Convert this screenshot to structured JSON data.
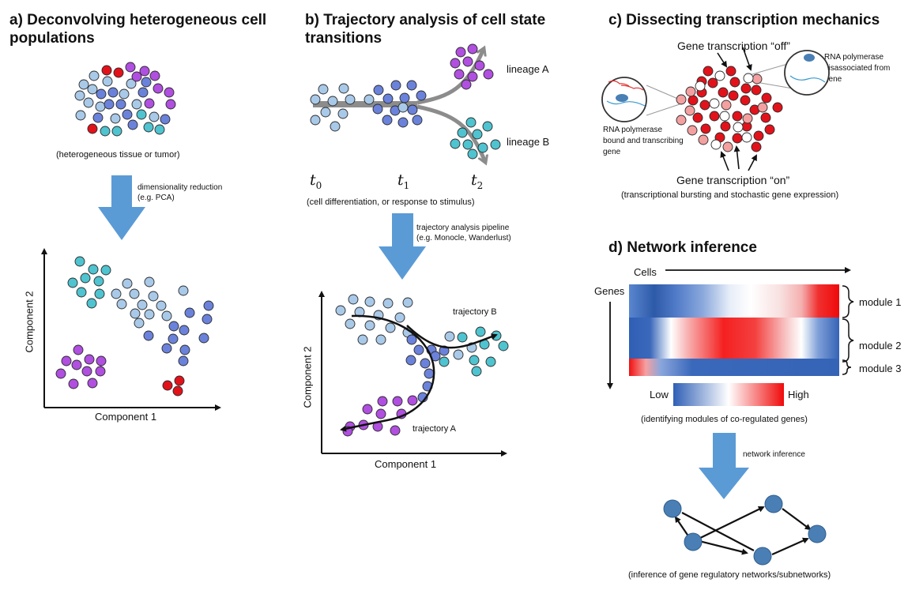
{
  "colors": {
    "light_blue": "#a9c9e8",
    "mid_blue": "#6b82db",
    "teal": "#4fc3cf",
    "purple": "#b04fe0",
    "red": "#e2121b",
    "light_red": "#f4a0a0",
    "arrow_blue": "#5b9bd5",
    "node_blue": "#4a7fb5",
    "heat_low": "#2f5fb5",
    "heat_high": "#f00a0a"
  },
  "panel_a": {
    "title_line1": "a) Deconvolving heterogeneous cell",
    "title_line2": "populations",
    "caption": "(heterogeneous tissue or tumor)",
    "arrow_label_line1": "dimensionality reduction",
    "arrow_label_line2": "(e.g. PCA)",
    "xlabel": "Component 1",
    "ylabel": "Component 2"
  },
  "panel_b": {
    "title_line1": "b) Trajectory analysis of cell state",
    "title_line2": "transitions",
    "lineage_a": "lineage A",
    "lineage_b": "lineage B",
    "t0": "t",
    "t0_sub": "0",
    "t1": "t",
    "t1_sub": "1",
    "t2": "t",
    "t2_sub": "2",
    "caption": "(cell differentiation, or response to stimulus)",
    "arrow_label_line1": "trajectory analysis pipeline",
    "arrow_label_line2": "(e.g. Monocle, Wanderlust)",
    "trajectory_a": "trajectory A",
    "trajectory_b": "trajectory B",
    "xlabel": "Component 1",
    "ylabel": "Component 2"
  },
  "panel_c": {
    "title": "c) Dissecting transcription mechanics",
    "off_label": "Gene transcription “off”",
    "on_label": "Gene transcription “on”",
    "bound_line1": "RNA polymerase",
    "bound_line2": "bound and transcribing",
    "bound_line3": "gene",
    "disassoc_line1": "RNA polymerase",
    "disassoc_line2": "disassociated from",
    "disassoc_line3": "gene",
    "caption": "(transcriptional bursting and stochastic gene expression)"
  },
  "panel_d": {
    "title": "d) Network inference",
    "cells": "Cells",
    "genes": "Genes",
    "module1": "module 1",
    "module2": "module 2",
    "module3": "module 3",
    "low": "Low",
    "high": "High",
    "caption": "(identifying modules of co-regulated genes)",
    "arrow_label": "network inference",
    "bottom_caption": "(inference of gene regulatory networks/subnetworks)"
  }
}
